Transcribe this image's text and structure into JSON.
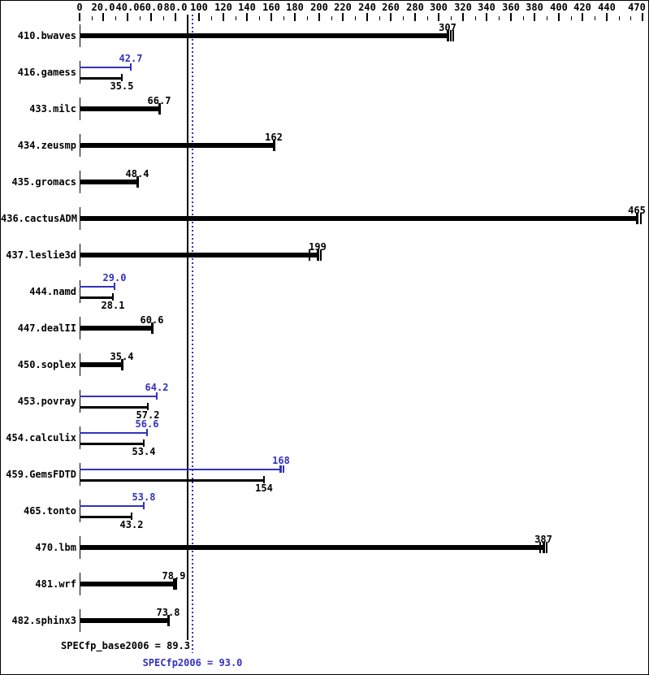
{
  "chart_data": {
    "type": "bar",
    "orientation": "horizontal",
    "title": "",
    "xlabel": "",
    "ylabel": "",
    "xlim": [
      0,
      470
    ],
    "grid": false,
    "legend": "none",
    "axis": {
      "side": "top",
      "minor_tick_step": 10,
      "major_ticks": [
        {
          "value": 0,
          "label": "0"
        },
        {
          "value": 20,
          "label": "20.0"
        },
        {
          "value": 40,
          "label": "40.0"
        },
        {
          "value": 60,
          "label": "60.0"
        },
        {
          "value": 80,
          "label": "80.0"
        },
        {
          "value": 100,
          "label": "100"
        },
        {
          "value": 120,
          "label": "120"
        },
        {
          "value": 140,
          "label": "140"
        },
        {
          "value": 160,
          "label": "160"
        },
        {
          "value": 180,
          "label": "180"
        },
        {
          "value": 200,
          "label": "200"
        },
        {
          "value": 220,
          "label": "220"
        },
        {
          "value": 240,
          "label": "240"
        },
        {
          "value": 260,
          "label": "260"
        },
        {
          "value": 280,
          "label": "280"
        },
        {
          "value": 300,
          "label": "300"
        },
        {
          "value": 320,
          "label": "320"
        },
        {
          "value": 340,
          "label": "340"
        },
        {
          "value": 360,
          "label": "360"
        },
        {
          "value": 380,
          "label": "380"
        },
        {
          "value": 400,
          "label": "400"
        },
        {
          "value": 420,
          "label": "420"
        },
        {
          "value": 440,
          "label": "440"
        },
        {
          "value": 470,
          "label": "470"
        }
      ]
    },
    "benchmarks": [
      {
        "name": "410.bwaves",
        "peak": null,
        "peak_label": "",
        "base": 307,
        "base_label": "307",
        "peak_run_ticks": [],
        "base_run_ticks": [
          309,
          311
        ]
      },
      {
        "name": "416.gamess",
        "peak": 42.7,
        "peak_label": "42.7",
        "base": 35.5,
        "base_label": "35.5",
        "peak_run_ticks": [],
        "base_run_ticks": []
      },
      {
        "name": "433.milc",
        "peak": null,
        "peak_label": "",
        "base": 66.7,
        "base_label": "66.7",
        "peak_run_ticks": [],
        "base_run_ticks": []
      },
      {
        "name": "434.zeusmp",
        "peak": null,
        "peak_label": "",
        "base": 162,
        "base_label": "162",
        "peak_run_ticks": [],
        "base_run_ticks": []
      },
      {
        "name": "435.gromacs",
        "peak": null,
        "peak_label": "",
        "base": 48.4,
        "base_label": "48.4",
        "peak_run_ticks": [],
        "base_run_ticks": []
      },
      {
        "name": "436.cactusADM",
        "peak": null,
        "peak_label": "",
        "base": 465,
        "base_label": "465",
        "peak_run_ticks": [],
        "base_run_ticks": [
          468
        ]
      },
      {
        "name": "437.leslie3d",
        "peak": null,
        "peak_label": "",
        "base": 199,
        "base_label": "199",
        "peak_run_ticks": [],
        "base_run_ticks": [
          191,
          201
        ]
      },
      {
        "name": "444.namd",
        "peak": 29.0,
        "peak_label": "29.0",
        "base": 28.1,
        "base_label": "28.1",
        "peak_run_ticks": [],
        "base_run_ticks": []
      },
      {
        "name": "447.dealII",
        "peak": null,
        "peak_label": "",
        "base": 60.6,
        "base_label": "60.6",
        "peak_run_ticks": [],
        "base_run_ticks": []
      },
      {
        "name": "450.soplex",
        "peak": null,
        "peak_label": "",
        "base": 35.4,
        "base_label": "35.4",
        "peak_run_ticks": [],
        "base_run_ticks": []
      },
      {
        "name": "453.povray",
        "peak": 64.2,
        "peak_label": "64.2",
        "base": 57.2,
        "base_label": "57.2",
        "peak_run_ticks": [],
        "base_run_ticks": []
      },
      {
        "name": "454.calculix",
        "peak": 56.6,
        "peak_label": "56.6",
        "base": 53.4,
        "base_label": "53.4",
        "peak_run_ticks": [],
        "base_run_ticks": []
      },
      {
        "name": "459.GemsFDTD",
        "peak": 168,
        "peak_label": "168",
        "base": 154,
        "base_label": "154",
        "peak_run_ticks": [
          166.5,
          169.5
        ],
        "base_run_ticks": []
      },
      {
        "name": "465.tonto",
        "peak": 53.8,
        "peak_label": "53.8",
        "base": 43.2,
        "base_label": "43.2",
        "peak_run_ticks": [],
        "base_run_ticks": []
      },
      {
        "name": "470.lbm",
        "peak": null,
        "peak_label": "",
        "base": 387,
        "base_label": "387",
        "peak_run_ticks": [],
        "base_run_ticks": [
          384,
          389
        ]
      },
      {
        "name": "481.wrf",
        "peak": null,
        "peak_label": "",
        "base": 78.9,
        "base_label": "78.9",
        "peak_run_ticks": [],
        "base_run_ticks": [
          80.3
        ]
      },
      {
        "name": "482.sphinx3",
        "peak": null,
        "peak_label": "",
        "base": 73.8,
        "base_label": "73.8",
        "peak_run_ticks": [],
        "base_run_ticks": []
      }
    ],
    "reference_lines": [
      {
        "name": "SPECfp_base2006",
        "value": 89.3,
        "label": "SPECfp_base2006 = 89.3",
        "style": "solid",
        "color": "#000000"
      },
      {
        "name": "SPECfp2006",
        "value": 93.0,
        "label": "SPECfp2006 = 93.0",
        "style": "dotted",
        "color": "#3232be"
      }
    ],
    "colors": {
      "base": "#000000",
      "peak": "#3232be",
      "background": "#ffffff"
    }
  }
}
